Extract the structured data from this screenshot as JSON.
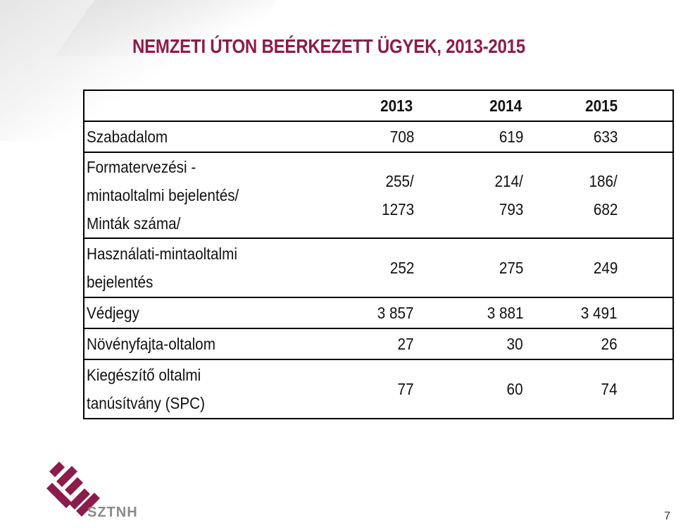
{
  "title": "NEMZETI ÚTON BEÉRKEZETT ÜGYEK, 2013-2015",
  "table": {
    "headers": [
      "2013",
      "2014",
      "2015"
    ],
    "rows": [
      {
        "label": [
          "Szabadalom"
        ],
        "values": [
          [
            "708"
          ],
          [
            "619"
          ],
          [
            "633"
          ]
        ]
      },
      {
        "label": [
          "Formatervezési -",
          "mintaoltalmi bejelentés/",
          "Minták száma/"
        ],
        "values": [
          [
            "255/",
            "1273"
          ],
          [
            "214/",
            "793"
          ],
          [
            "186/",
            "682"
          ]
        ]
      },
      {
        "label": [
          "Használati-mintaoltalmi",
          "bejelentés"
        ],
        "values": [
          [
            "252"
          ],
          [
            "275"
          ],
          [
            "249"
          ]
        ]
      },
      {
        "label": [
          "Védjegy"
        ],
        "values": [
          [
            "3 857"
          ],
          [
            "3 881"
          ],
          [
            "3 491"
          ]
        ]
      },
      {
        "label": [
          "Növényfajta-oltalom"
        ],
        "values": [
          [
            "27"
          ],
          [
            "30"
          ],
          [
            "26"
          ]
        ]
      },
      {
        "label": [
          "Kiegészítő oltalmi",
          "tanúsítvány (SPC)"
        ],
        "values": [
          [
            "77"
          ],
          [
            "60"
          ],
          [
            "74"
          ]
        ]
      }
    ]
  },
  "logo": {
    "text": "SZTNH",
    "icon": "sztnh-logo-icon",
    "color": "#8c1c4b"
  },
  "page_number": "7",
  "colors": {
    "title": "#8c1c4b",
    "logo_text": "#8a8a8a"
  }
}
